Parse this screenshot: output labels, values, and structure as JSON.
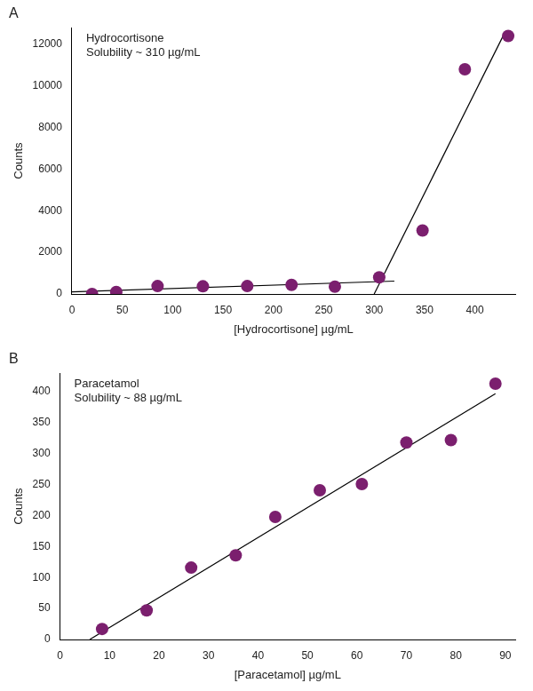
{
  "chart_data": [
    {
      "type": "scatter",
      "title": "A",
      "annotations": [
        "Hydrocortisone",
        "Solubility ~ 310 µg/mL"
      ],
      "x_label": "[Hydrocortisone] µg/mL",
      "y_label": "Counts",
      "xlim": [
        0,
        440
      ],
      "xticks": [
        0,
        50,
        100,
        150,
        200,
        250,
        300,
        350,
        400
      ],
      "ylim": [
        0,
        12800
      ],
      "yticks": [
        0,
        2000,
        4000,
        6000,
        8000,
        10000,
        12000
      ],
      "grid": false,
      "series": [
        {
          "type": "scatter",
          "color": "#7b1f6e",
          "marker": "circle",
          "x": [
            20,
            44,
            85,
            130,
            174,
            218,
            261,
            305,
            348,
            390,
            433
          ],
          "values": [
            0,
            100,
            380,
            370,
            380,
            440,
            350,
            800,
            3050,
            10800,
            12400
          ]
        },
        {
          "type": "line",
          "color": "#000000",
          "line_style": "solid",
          "x": [
            0,
            320
          ],
          "values": [
            100,
            620
          ]
        },
        {
          "type": "line",
          "color": "#000000",
          "line_style": "solid",
          "x": [
            300,
            430
          ],
          "values": [
            0,
            12600
          ]
        }
      ]
    },
    {
      "type": "scatter",
      "title": "B",
      "annotations": [
        "Paracetamol",
        "Solubility ~ 88 µg/mL"
      ],
      "x_label": "[Paracetamol] µg/mL",
      "y_label": "Counts",
      "xlim": [
        0,
        92
      ],
      "xticks": [
        0,
        10,
        20,
        30,
        40,
        50,
        60,
        70,
        80,
        90
      ],
      "ylim": [
        0,
        430
      ],
      "yticks": [
        0,
        50,
        100,
        150,
        200,
        250,
        300,
        350,
        400
      ],
      "grid": false,
      "series": [
        {
          "type": "scatter",
          "color": "#7b1f6e",
          "marker": "circle",
          "x": [
            8.5,
            17.5,
            26.5,
            35.5,
            43.5,
            52.5,
            61,
            70,
            79,
            88
          ],
          "values": [
            17,
            47,
            116,
            136,
            198,
            241,
            251,
            318,
            322,
            413
          ]
        },
        {
          "type": "line",
          "color": "#000000",
          "line_style": "solid",
          "x": [
            6,
            88
          ],
          "values": [
            0,
            397
          ]
        }
      ]
    }
  ]
}
